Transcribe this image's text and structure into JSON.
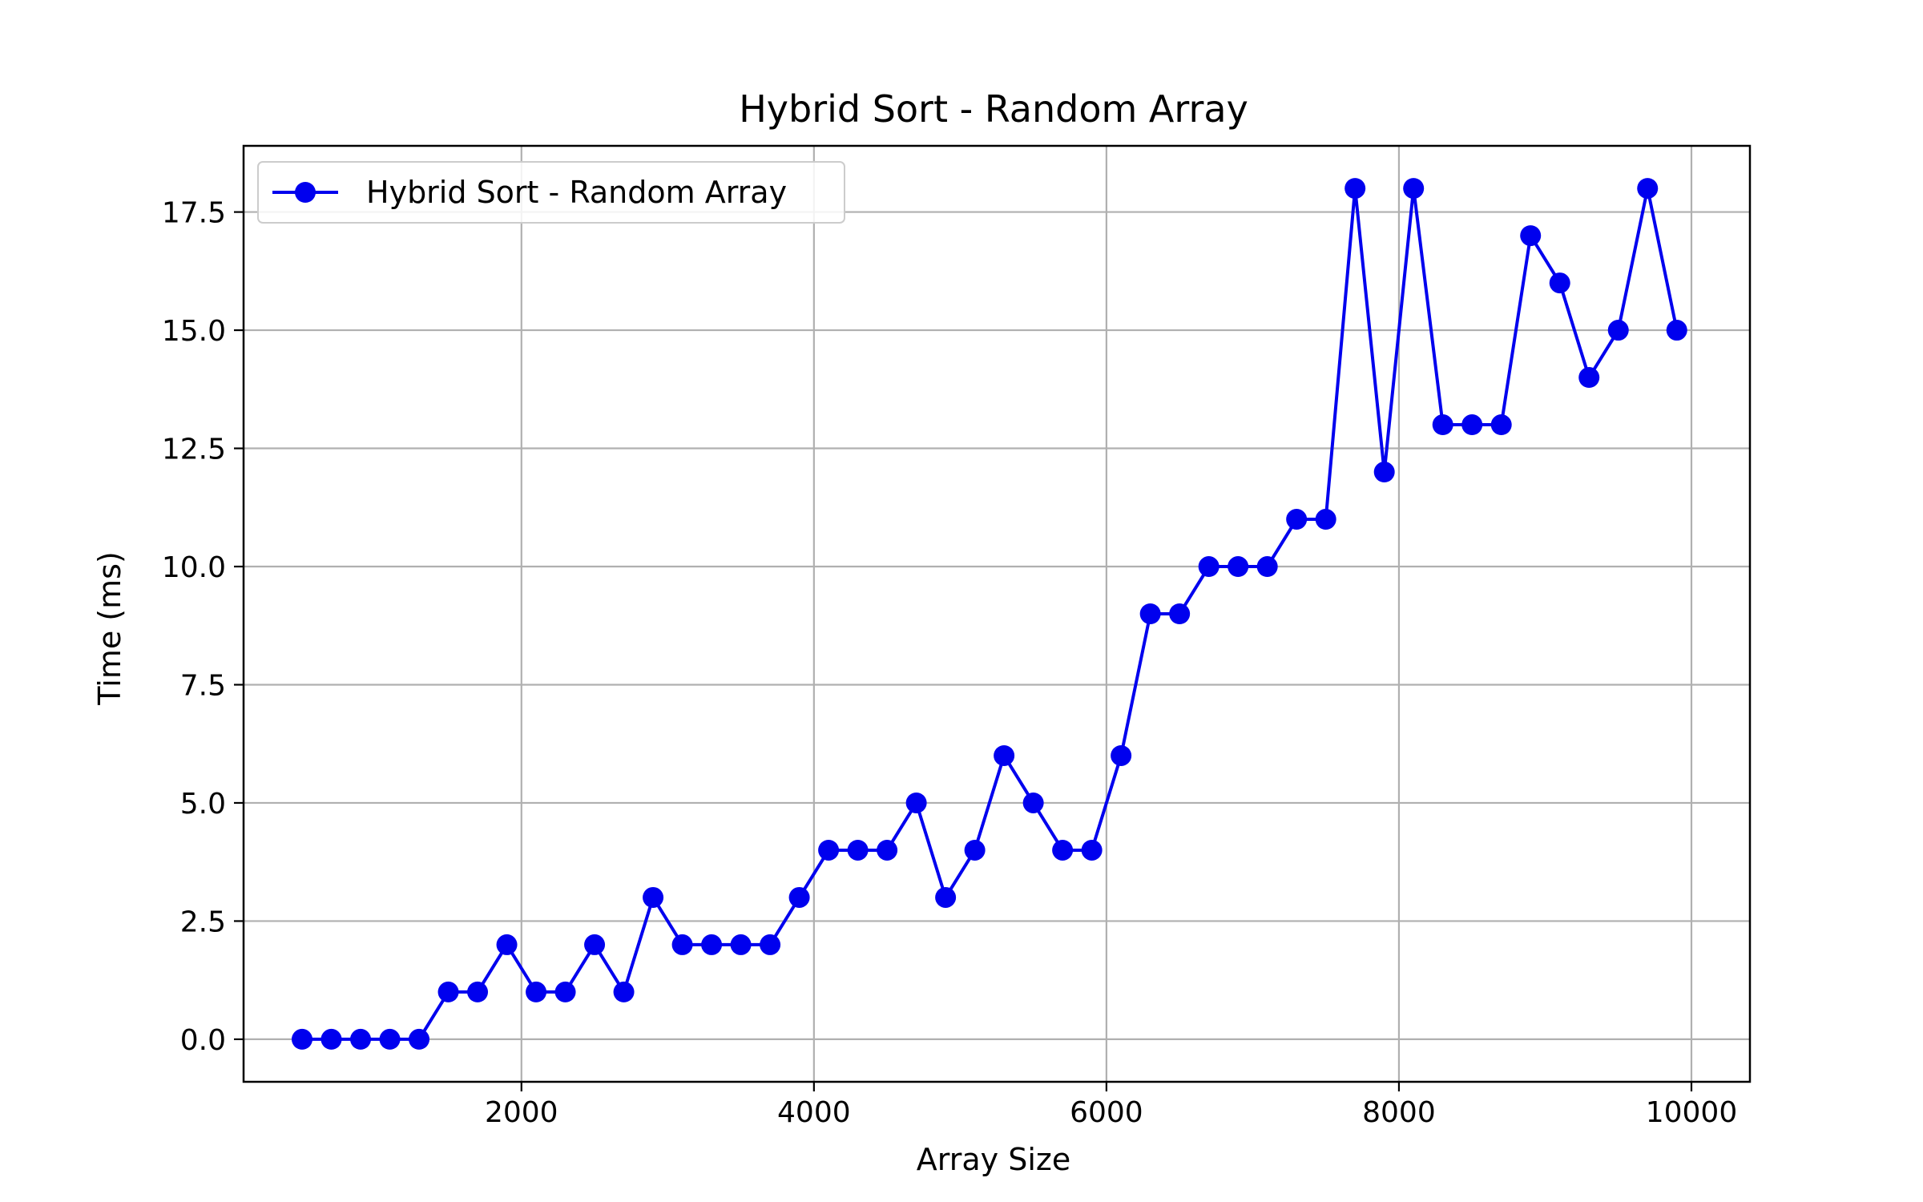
{
  "chart_data": {
    "type": "line",
    "title": "Hybrid Sort - Random Array",
    "xlabel": "Array Size",
    "ylabel": "Time (ms)",
    "xlim": [
      100,
      10400
    ],
    "ylim": [
      -0.9,
      18.9
    ],
    "xticks": [
      2000,
      4000,
      6000,
      8000,
      10000
    ],
    "xtick_labels": [
      "2000",
      "4000",
      "6000",
      "8000",
      "10000"
    ],
    "yticks": [
      0,
      2.5,
      5,
      7.5,
      10,
      12.5,
      15,
      17.5
    ],
    "ytick_labels": [
      "0.0",
      "2.5",
      "5.0",
      "7.5",
      "10.0",
      "12.5",
      "15.0",
      "17.5"
    ],
    "grid": true,
    "legend_position": "upper-left",
    "series": [
      {
        "name": "Hybrid Sort - Random Array",
        "color": "#0000ee",
        "marker": "circle",
        "x": [
          500,
          700,
          900,
          1100,
          1300,
          1500,
          1700,
          1900,
          2100,
          2300,
          2500,
          2700,
          2900,
          3100,
          3300,
          3500,
          3700,
          3900,
          4100,
          4300,
          4500,
          4700,
          4900,
          5100,
          5300,
          5500,
          5700,
          5900,
          6100,
          6300,
          6500,
          6700,
          6900,
          7100,
          7300,
          7500,
          7700,
          7900,
          8100,
          8300,
          8500,
          8700,
          8900,
          9100,
          9300,
          9500,
          9700,
          9900
        ],
        "values": [
          0,
          0,
          0,
          0,
          0,
          1,
          1,
          2,
          1,
          1,
          2,
          1,
          3,
          2,
          2,
          2,
          2,
          3,
          4,
          4,
          4,
          5,
          3,
          4,
          6,
          5,
          4,
          4,
          6,
          9,
          9,
          10,
          10,
          10,
          11,
          11,
          18,
          12,
          18,
          13,
          13,
          13,
          17,
          16,
          14,
          15,
          18,
          15
        ]
      }
    ]
  }
}
